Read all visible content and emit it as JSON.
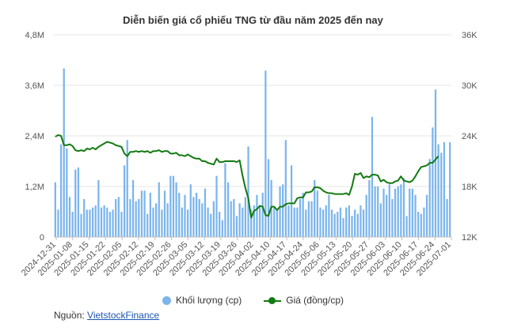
{
  "chart_data": {
    "type": "bar+line",
    "title": "Diễn biến giá cổ phiếu TNG từ đầu năm 2025 đến nay",
    "y_left_ticks": [
      "0",
      "1,2M",
      "2,4M",
      "3,6M",
      "4,8M"
    ],
    "y_right_ticks": [
      "12K",
      "18K",
      "24K",
      "30K",
      "36K"
    ],
    "y_left_range": [
      0,
      4800000
    ],
    "y_right_range": [
      12000,
      36000
    ],
    "x_tick_labels": [
      "2024-12-31",
      "2025-01-08",
      "2025-01-15",
      "2025-01-22",
      "2025-02-05",
      "2025-02-12",
      "2025-02-19",
      "2025-02-26",
      "2025-03-05",
      "2025-03-12",
      "2025-03-19",
      "2025-03-26",
      "2025-04-02",
      "2025-04-10",
      "2025-04-17",
      "2025-04-24",
      "2025-05-06",
      "2025-05-13",
      "2025-05-20",
      "2025-05-27",
      "2025-06-03",
      "2025-06-10",
      "2025-06-17",
      "2025-06-24",
      "2025-07-01"
    ],
    "grid": "horizontal",
    "legend_position": "bottom",
    "series": [
      {
        "name": "Khối lượng (cp)",
        "type": "bar",
        "axis": "left",
        "color": "#7cb5ec",
        "values": [
          1300000,
          650000,
          2200000,
          4000000,
          2100000,
          950000,
          600000,
          1600000,
          1650000,
          550000,
          900000,
          650000,
          650000,
          700000,
          750000,
          1350000,
          700000,
          750000,
          700000,
          600000,
          650000,
          900000,
          950000,
          600000,
          1700000,
          2300000,
          900000,
          1350000,
          850000,
          900000,
          1100000,
          1100000,
          550000,
          1050000,
          700000,
          800000,
          1300000,
          650000,
          1100000,
          800000,
          1450000,
          1450000,
          1300000,
          1050000,
          700000,
          1000000,
          650000,
          1250000,
          950000,
          1050000,
          900000,
          800000,
          1150000,
          700000,
          550000,
          850000,
          1450000,
          600000,
          400000,
          1750000,
          1300000,
          850000,
          900000,
          500000,
          800000,
          700000,
          950000,
          2150000,
          650000,
          750000,
          1000000,
          750000,
          1050000,
          3950000,
          1850000,
          1350000,
          700000,
          650000,
          1200000,
          1250000,
          2300000,
          750000,
          1700000,
          700000,
          700000,
          900000,
          1050000,
          650000,
          850000,
          850000,
          1350000,
          1100000,
          700000,
          650000,
          750000,
          1000000,
          650000,
          550000,
          600000,
          700000,
          450000,
          700000,
          750000,
          500000,
          650000,
          550000,
          750000,
          650000,
          1000000,
          1350000,
          2850000,
          1200000,
          1200000,
          800000,
          1150000,
          1000000,
          1250000,
          900000,
          1150000,
          1200000,
          1250000,
          1400000,
          500000,
          1150000,
          1150000,
          1000000,
          600000,
          550000,
          700000,
          1000000,
          1850000,
          2600000,
          3500000,
          2200000,
          2000000,
          2250000,
          900000,
          2250000
        ]
      },
      {
        "name": "Giá (đồng/cp)",
        "type": "line",
        "axis": "right",
        "color": "#117a11",
        "values": [
          23900,
          24100,
          24000,
          22900,
          22900,
          23000,
          22800,
          22300,
          22200,
          22300,
          22200,
          22500,
          22400,
          22600,
          22400,
          22700,
          22900,
          23100,
          23300,
          23200,
          23100,
          22900,
          22800,
          22700,
          21900,
          21600,
          22100,
          22100,
          22200,
          22100,
          22200,
          22100,
          22200,
          22000,
          22200,
          22200,
          22300,
          22100,
          22200,
          22200,
          21900,
          21900,
          22000,
          21700,
          21700,
          21600,
          21800,
          21600,
          21400,
          21300,
          21300,
          21000,
          21000,
          20800,
          20700,
          20600,
          21300,
          20900,
          20900,
          21000,
          21000,
          21000,
          21000,
          20900,
          21100,
          19300,
          17800,
          16600,
          14300,
          15100,
          15300,
          15700,
          15600,
          14600,
          14500,
          15600,
          15600,
          15200,
          15600,
          15600,
          15900,
          16000,
          16000,
          16000,
          16600,
          16700,
          16700,
          17300,
          17300,
          17400,
          17900,
          17900,
          17800,
          17500,
          17300,
          17200,
          17200,
          17100,
          17100,
          17100,
          17100,
          17200,
          17000,
          18000,
          19500,
          19400,
          19600,
          19000,
          19200,
          19100,
          19400,
          19400,
          19300,
          18600,
          18800,
          18500,
          18400,
          18400,
          18600,
          18700,
          19200,
          18700,
          18600,
          18500,
          18700,
          19200,
          19800,
          20300,
          20400,
          20500,
          20800,
          20800,
          21200,
          21600
        ]
      }
    ],
    "legend": [
      {
        "label": "Khối lượng (cp)",
        "color": "#7cb5ec"
      },
      {
        "label": "Giá (đồng/cp)",
        "color": "#117a11"
      }
    ]
  },
  "source": {
    "prefix": "Nguồn:",
    "link_text": "VietstockFinance"
  }
}
